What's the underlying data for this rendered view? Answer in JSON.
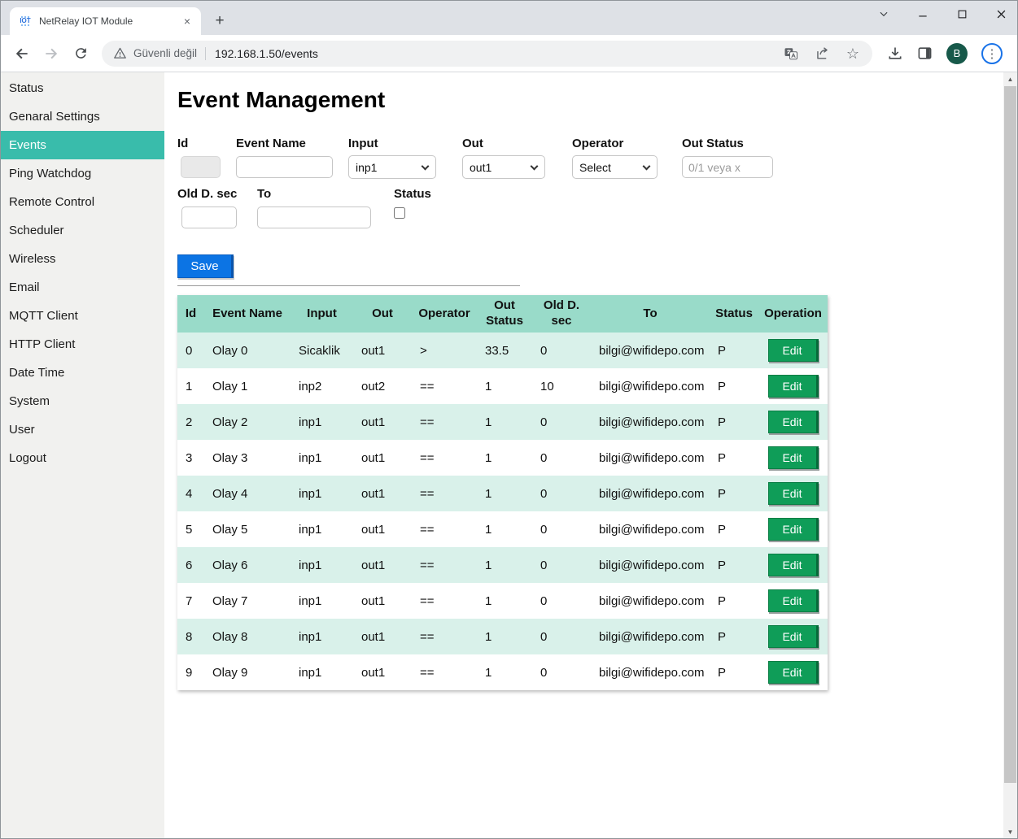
{
  "browser": {
    "tab_title": "NetRelay IOT Module",
    "favicon_text": "IOT",
    "security_text": "Güvenli değil",
    "url": "192.168.1.50/events",
    "avatar_initial": "B"
  },
  "icons": {
    "tab_close": "×",
    "new_tab": "+",
    "star": "☆",
    "kebab": "⋮",
    "scroll_up": "▲",
    "scroll_down": "▼"
  },
  "sidebar": {
    "items": [
      {
        "label": "Status",
        "active": false
      },
      {
        "label": "Genaral Settings",
        "active": false
      },
      {
        "label": "Events",
        "active": true
      },
      {
        "label": "Ping Watchdog",
        "active": false
      },
      {
        "label": "Remote Control",
        "active": false
      },
      {
        "label": "Scheduler",
        "active": false
      },
      {
        "label": "Wireless",
        "active": false
      },
      {
        "label": "Email",
        "active": false
      },
      {
        "label": "MQTT Client",
        "active": false
      },
      {
        "label": "HTTP Client",
        "active": false
      },
      {
        "label": "Date Time",
        "active": false
      },
      {
        "label": "System",
        "active": false
      },
      {
        "label": "User",
        "active": false
      },
      {
        "label": "Logout",
        "active": false
      }
    ]
  },
  "main": {
    "title": "Event Management",
    "form": {
      "id": {
        "label": "Id",
        "value": ""
      },
      "event_name": {
        "label": "Event Name",
        "value": ""
      },
      "input": {
        "label": "Input",
        "value": "inp1"
      },
      "out": {
        "label": "Out",
        "value": "out1"
      },
      "operator": {
        "label": "Operator",
        "value": "Select"
      },
      "out_status": {
        "label": "Out Status",
        "placeholder": "0/1 veya x",
        "value": ""
      },
      "old_d_sec": {
        "label": "Old D. sec",
        "value": ""
      },
      "to": {
        "label": "To",
        "value": ""
      },
      "status": {
        "label": "Status",
        "checked": false
      },
      "save_label": "Save"
    },
    "table": {
      "columns": [
        "Id",
        "Event Name",
        "Input",
        "Out",
        "Operator",
        "Out Status",
        "Old D. sec",
        "To",
        "Status",
        "Operation"
      ],
      "edit_label": "Edit",
      "rows": [
        [
          "0",
          "Olay 0",
          "Sicaklik",
          "out1",
          ">",
          "33.5",
          "0",
          "bilgi@wifidepo.com",
          "P"
        ],
        [
          "1",
          "Olay 1",
          "inp2",
          "out2",
          "==",
          "1",
          "10",
          "bilgi@wifidepo.com",
          "P"
        ],
        [
          "2",
          "Olay 2",
          "inp1",
          "out1",
          "==",
          "1",
          "0",
          "bilgi@wifidepo.com",
          "P"
        ],
        [
          "3",
          "Olay 3",
          "inp1",
          "out1",
          "==",
          "1",
          "0",
          "bilgi@wifidepo.com",
          "P"
        ],
        [
          "4",
          "Olay 4",
          "inp1",
          "out1",
          "==",
          "1",
          "0",
          "bilgi@wifidepo.com",
          "P"
        ],
        [
          "5",
          "Olay 5",
          "inp1",
          "out1",
          "==",
          "1",
          "0",
          "bilgi@wifidepo.com",
          "P"
        ],
        [
          "6",
          "Olay 6",
          "inp1",
          "out1",
          "==",
          "1",
          "0",
          "bilgi@wifidepo.com",
          "P"
        ],
        [
          "7",
          "Olay 7",
          "inp1",
          "out1",
          "==",
          "1",
          "0",
          "bilgi@wifidepo.com",
          "P"
        ],
        [
          "8",
          "Olay 8",
          "inp1",
          "out1",
          "==",
          "1",
          "0",
          "bilgi@wifidepo.com",
          "P"
        ],
        [
          "9",
          "Olay 9",
          "inp1",
          "out1",
          "==",
          "1",
          "0",
          "bilgi@wifidepo.com",
          "P"
        ]
      ]
    }
  },
  "colors": {
    "accent_teal": "#39bcab",
    "table_header": "#99dbc9",
    "row_even": "#d9f1ea",
    "save_blue": "#0c74e4",
    "edit_green": "#0f9d58",
    "avatar_green": "#17594a",
    "kebab_ring_blue": "#1a73e8"
  }
}
